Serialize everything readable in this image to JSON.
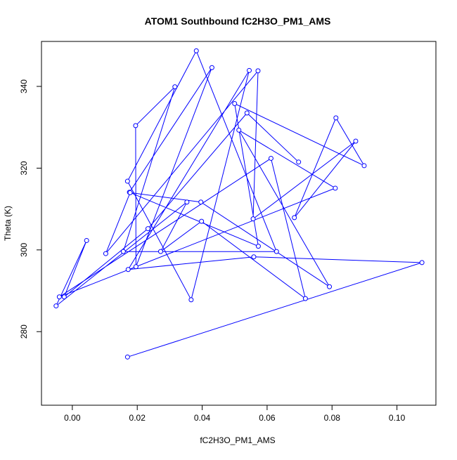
{
  "chart_data": {
    "type": "line",
    "title": "ATOM1 Southbound fC2H3O_PM1_AMS",
    "xlabel": "fC2H3O_PM1_AMS",
    "ylabel": "Theta (K)",
    "xlim": [
      -0.0095,
      0.112
    ],
    "ylim": [
      262,
      351
    ],
    "xticks": [
      0.0,
      0.02,
      0.04,
      0.06,
      0.08,
      0.1
    ],
    "xtick_labels": [
      "0.00",
      "0.02",
      "0.04",
      "0.06",
      "0.08",
      "0.10"
    ],
    "yticks": [
      280,
      300,
      320,
      340
    ],
    "ytick_labels": [
      "280",
      "300",
      "320",
      "340"
    ],
    "grid": false,
    "line_color": "#0000ff",
    "marker": "open-circle",
    "series": [
      {
        "x": [
          0.017,
          0.1077,
          0.0559,
          0.0172,
          0.0545,
          0.0366,
          0.017,
          0.0382,
          0.0629,
          0.0157,
          0.0316,
          0.0195,
          0.0196,
          0.043,
          0.0176,
          0.0573,
          0.05,
          0.0899,
          0.0812,
          0.0684,
          0.0873,
          0.0557,
          0.0572,
          0.0103,
          0.0178,
          0.0396,
          0.0792,
          0.0513,
          0.081,
          -0.004,
          0.0612,
          0.0718,
          0.0398,
          0.0272,
          0.0353,
          -0.005,
          0.0044,
          -0.0025,
          0.0233,
          0.0538,
          0.0697
        ],
        "y": [
          273.8,
          296.9,
          298.3,
          295.2,
          343.9,
          287.8,
          316.8,
          348.7,
          299.6,
          299.6,
          339.9,
          330.4,
          295.9,
          344.6,
          314.1,
          300.9,
          335.8,
          320.6,
          332.3,
          307.9,
          326.6,
          307.6,
          343.8,
          299.1,
          314.0,
          311.7,
          291.0,
          329.3,
          315.1,
          288.5,
          322.4,
          288.1,
          307.0,
          299.6,
          311.7,
          286.3,
          302.3,
          288.5,
          305.2,
          333.5,
          321.5
        ]
      }
    ]
  }
}
